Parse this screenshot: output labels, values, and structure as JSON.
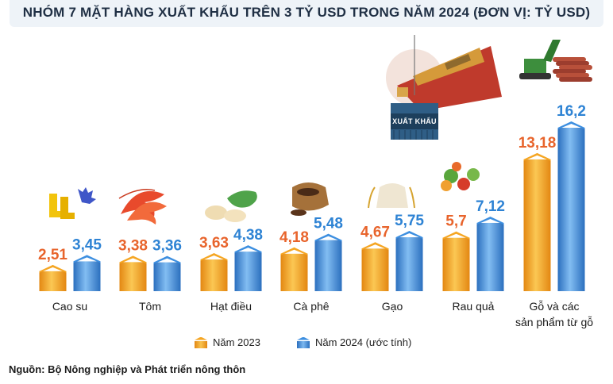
{
  "title": "NHÓM 7 MẶT HÀNG XUẤT KHẨU TRÊN 3 TỶ USD TRONG NĂM 2024 (ĐƠN VỊ: TỶ USD)",
  "banner_text": "XUẤT KHẨU",
  "source": "Nguồn: Bộ Nông nghiệp và Phát triển nông thôn",
  "colors": {
    "orange": "#f5a623",
    "orange_dark": "#e38712",
    "orange_label": "#e8642c",
    "blue": "#3d8fe0",
    "blue_dark": "#2b6fbe",
    "blue_label": "#2e83d4"
  },
  "chart_data": {
    "type": "bar",
    "title": "NHÓM 7 MẶT HÀNG XUẤT KHẨU TRÊN 3 TỶ USD TRONG NĂM 2024 (ĐƠN VỊ: TỶ USD)",
    "categories": [
      "Cao su",
      "Tôm",
      "Hạt điều",
      "Cà phê",
      "Gạo",
      "Rau quả",
      "Gỗ và các sản phẩm từ gỗ"
    ],
    "category_lines": [
      [
        "Cao su"
      ],
      [
        "Tôm"
      ],
      [
        "Hạt điều"
      ],
      [
        "Cà phê"
      ],
      [
        "Gạo"
      ],
      [
        "Rau quả"
      ],
      [
        "Gỗ và các",
        "sản phẩm từ gỗ"
      ]
    ],
    "series": [
      {
        "name": "Năm 2023",
        "values": [
          2.51,
          3.38,
          3.63,
          4.18,
          4.67,
          5.7,
          13.18
        ],
        "labels": [
          "2,51",
          "3,38",
          "3,63",
          "4,18",
          "4,67",
          "5,7",
          "13,18"
        ]
      },
      {
        "name": "Năm 2024 (ước tính)",
        "values": [
          3.45,
          3.36,
          4.38,
          5.48,
          5.75,
          7.12,
          16.2
        ],
        "labels": [
          "3,45",
          "3,36",
          "4,38",
          "5,48",
          "5,75",
          "7,12",
          "16,2"
        ]
      }
    ],
    "ylim": [
      0,
      16.2
    ],
    "grid": false,
    "legend_position": "bottom-center"
  }
}
